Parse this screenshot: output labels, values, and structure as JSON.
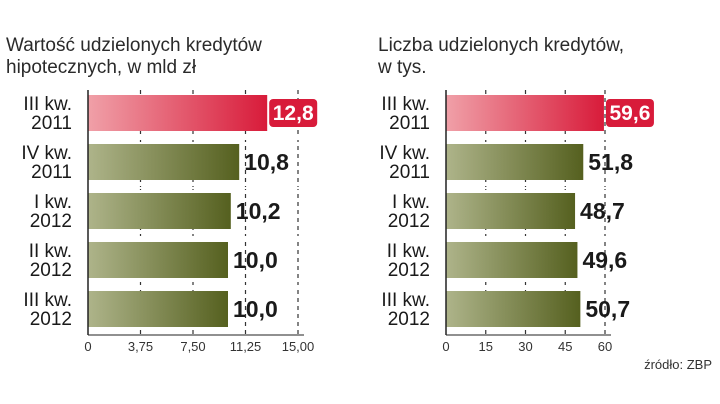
{
  "source": "źródło: ZBP",
  "chart_data": [
    {
      "type": "bar",
      "orientation": "horizontal",
      "title": "Wartość udzielonych kredytów\nhipotecznych,  w mld zł",
      "categories": [
        "III kw.\n2011",
        "IV kw.\n2011",
        "I kw.\n2012",
        "II kw.\n2012",
        "III kw.\n2012"
      ],
      "values": [
        12.8,
        10.8,
        10.2,
        10.0,
        10.0
      ],
      "value_labels": [
        "12,8",
        "10,8",
        "10,2",
        "10,0",
        "10,0"
      ],
      "ticks": [
        0,
        3.75,
        7.5,
        11.25,
        15
      ],
      "tick_labels": [
        "0",
        "3,75",
        "7,50",
        "11,25",
        "15,00"
      ],
      "xlim": [
        0,
        15
      ],
      "grid": "vertical-dashed",
      "highlight_index": 0,
      "colors": {
        "highlight": "#d81b3a",
        "highlight_light": "#f0a0a8",
        "bar": "#55601f",
        "bar_light": "#aeb48a"
      }
    },
    {
      "type": "bar",
      "orientation": "horizontal",
      "title": "Liczba udzielonych kredytów,\nw tys.",
      "categories": [
        "III kw.\n2011",
        "IV kw.\n2011",
        "I kw.\n2012",
        "II kw.\n2012",
        "III kw.\n2012"
      ],
      "values": [
        59.6,
        51.8,
        48.7,
        49.6,
        50.7
      ],
      "value_labels": [
        "59,6",
        "51,8",
        "48,7",
        "49,6",
        "50,7"
      ],
      "ticks": [
        0,
        15,
        30,
        45,
        60
      ],
      "tick_labels": [
        "0",
        "15",
        "30",
        "45",
        "60"
      ],
      "xlim": [
        0,
        60
      ],
      "grid": "vertical-dashed",
      "highlight_index": 0,
      "colors": {
        "highlight": "#d81b3a",
        "highlight_light": "#f0a0a8",
        "bar": "#55601f",
        "bar_light": "#aeb48a"
      }
    }
  ]
}
